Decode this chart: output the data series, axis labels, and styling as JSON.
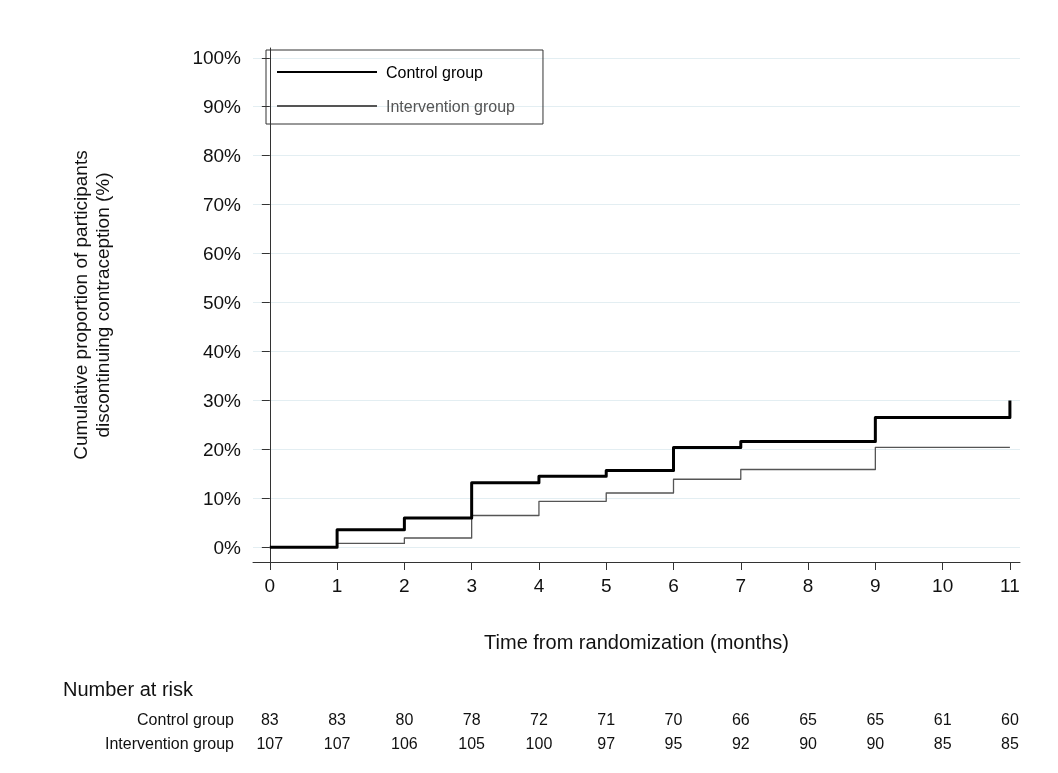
{
  "chart_data": {
    "type": "step",
    "xlabel": "Time from randomization (months)",
    "ylabel": "Cumulative proportion of participants\ndiscontinuing contraception (%)",
    "x": [
      0,
      1,
      2,
      3,
      4,
      5,
      6,
      7,
      8,
      9,
      10,
      11
    ],
    "series": [
      {
        "name": "Control group",
        "color": "#000000",
        "values": [
          0,
          3.6,
          6.0,
          13.2,
          14.5,
          15.7,
          20.4,
          21.6,
          21.6,
          26.5,
          26.5,
          30
        ]
      },
      {
        "name": "Intervention group",
        "color": "#555555",
        "values": [
          0,
          0.8,
          1.9,
          6.5,
          9.4,
          11.1,
          13.9,
          15.9,
          15.9,
          20.4,
          20.4,
          20.4
        ]
      }
    ],
    "xlim": [
      -0.25,
      11.15
    ],
    "xticks": [
      0,
      1,
      2,
      3,
      4,
      5,
      6,
      7,
      8,
      9,
      10,
      11
    ],
    "ylim": [
      -3,
      102
    ],
    "yticks": [
      {
        "value": 0,
        "label": "0%"
      },
      {
        "value": 10,
        "label": "10%"
      },
      {
        "value": 20,
        "label": "20%"
      },
      {
        "value": 30,
        "label": "30%"
      },
      {
        "value": 40,
        "label": "40%"
      },
      {
        "value": 50,
        "label": "50%"
      },
      {
        "value": 60,
        "label": "60%"
      },
      {
        "value": 70,
        "label": "70%"
      },
      {
        "value": 80,
        "label": "80%"
      },
      {
        "value": 90,
        "label": "90%"
      },
      {
        "value": 100,
        "label": "100%"
      }
    ],
    "grid": "y",
    "legend": "top left",
    "marker": "none",
    "annotations": [
      "Number at risk",
      "Control group",
      "83",
      "83",
      "80",
      "78",
      "72",
      "71",
      "70",
      "66",
      "65",
      "65",
      "61",
      "60",
      "Intervention group",
      "107",
      "107",
      "106",
      "105",
      "100",
      "97",
      "95",
      "92",
      "90",
      "90",
      "85",
      "85"
    ]
  }
}
